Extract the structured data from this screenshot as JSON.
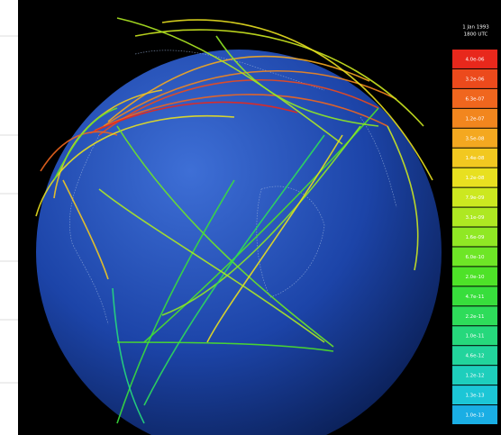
{
  "legend": {
    "title": [
      "1 Jan 1993",
      "1800 UTC"
    ],
    "items": [
      {
        "label": "4.0e-06",
        "color": "#e8281c"
      },
      {
        "label": "3.2e-06",
        "color": "#ec4a1c"
      },
      {
        "label": "6.3e-07",
        "color": "#f0661e"
      },
      {
        "label": "1.2e-07",
        "color": "#f2861e"
      },
      {
        "label": "3.5e-08",
        "color": "#f4a820"
      },
      {
        "label": "1.4e-08",
        "color": "#f2c820"
      },
      {
        "label": "1.2e-08",
        "color": "#e8e020"
      },
      {
        "label": "7.9e-09",
        "color": "#cce820"
      },
      {
        "label": "3.1e-09",
        "color": "#aee822"
      },
      {
        "label": "1.6e-09",
        "color": "#90e824"
      },
      {
        "label": "6.0e-10",
        "color": "#6ee626"
      },
      {
        "label": "2.0e-10",
        "color": "#4ee228"
      },
      {
        "label": "4.7e-11",
        "color": "#38de3c"
      },
      {
        "label": "2.2e-11",
        "color": "#2edc5a"
      },
      {
        "label": "1.0e-11",
        "color": "#26d87c"
      },
      {
        "label": "4.6e-12",
        "color": "#22d49c"
      },
      {
        "label": "1.2e-12",
        "color": "#1ecebc"
      },
      {
        "label": "1.3e-13",
        "color": "#1cc6d6"
      },
      {
        "label": "1.0e-13",
        "color": "#1aaee4"
      }
    ]
  }
}
